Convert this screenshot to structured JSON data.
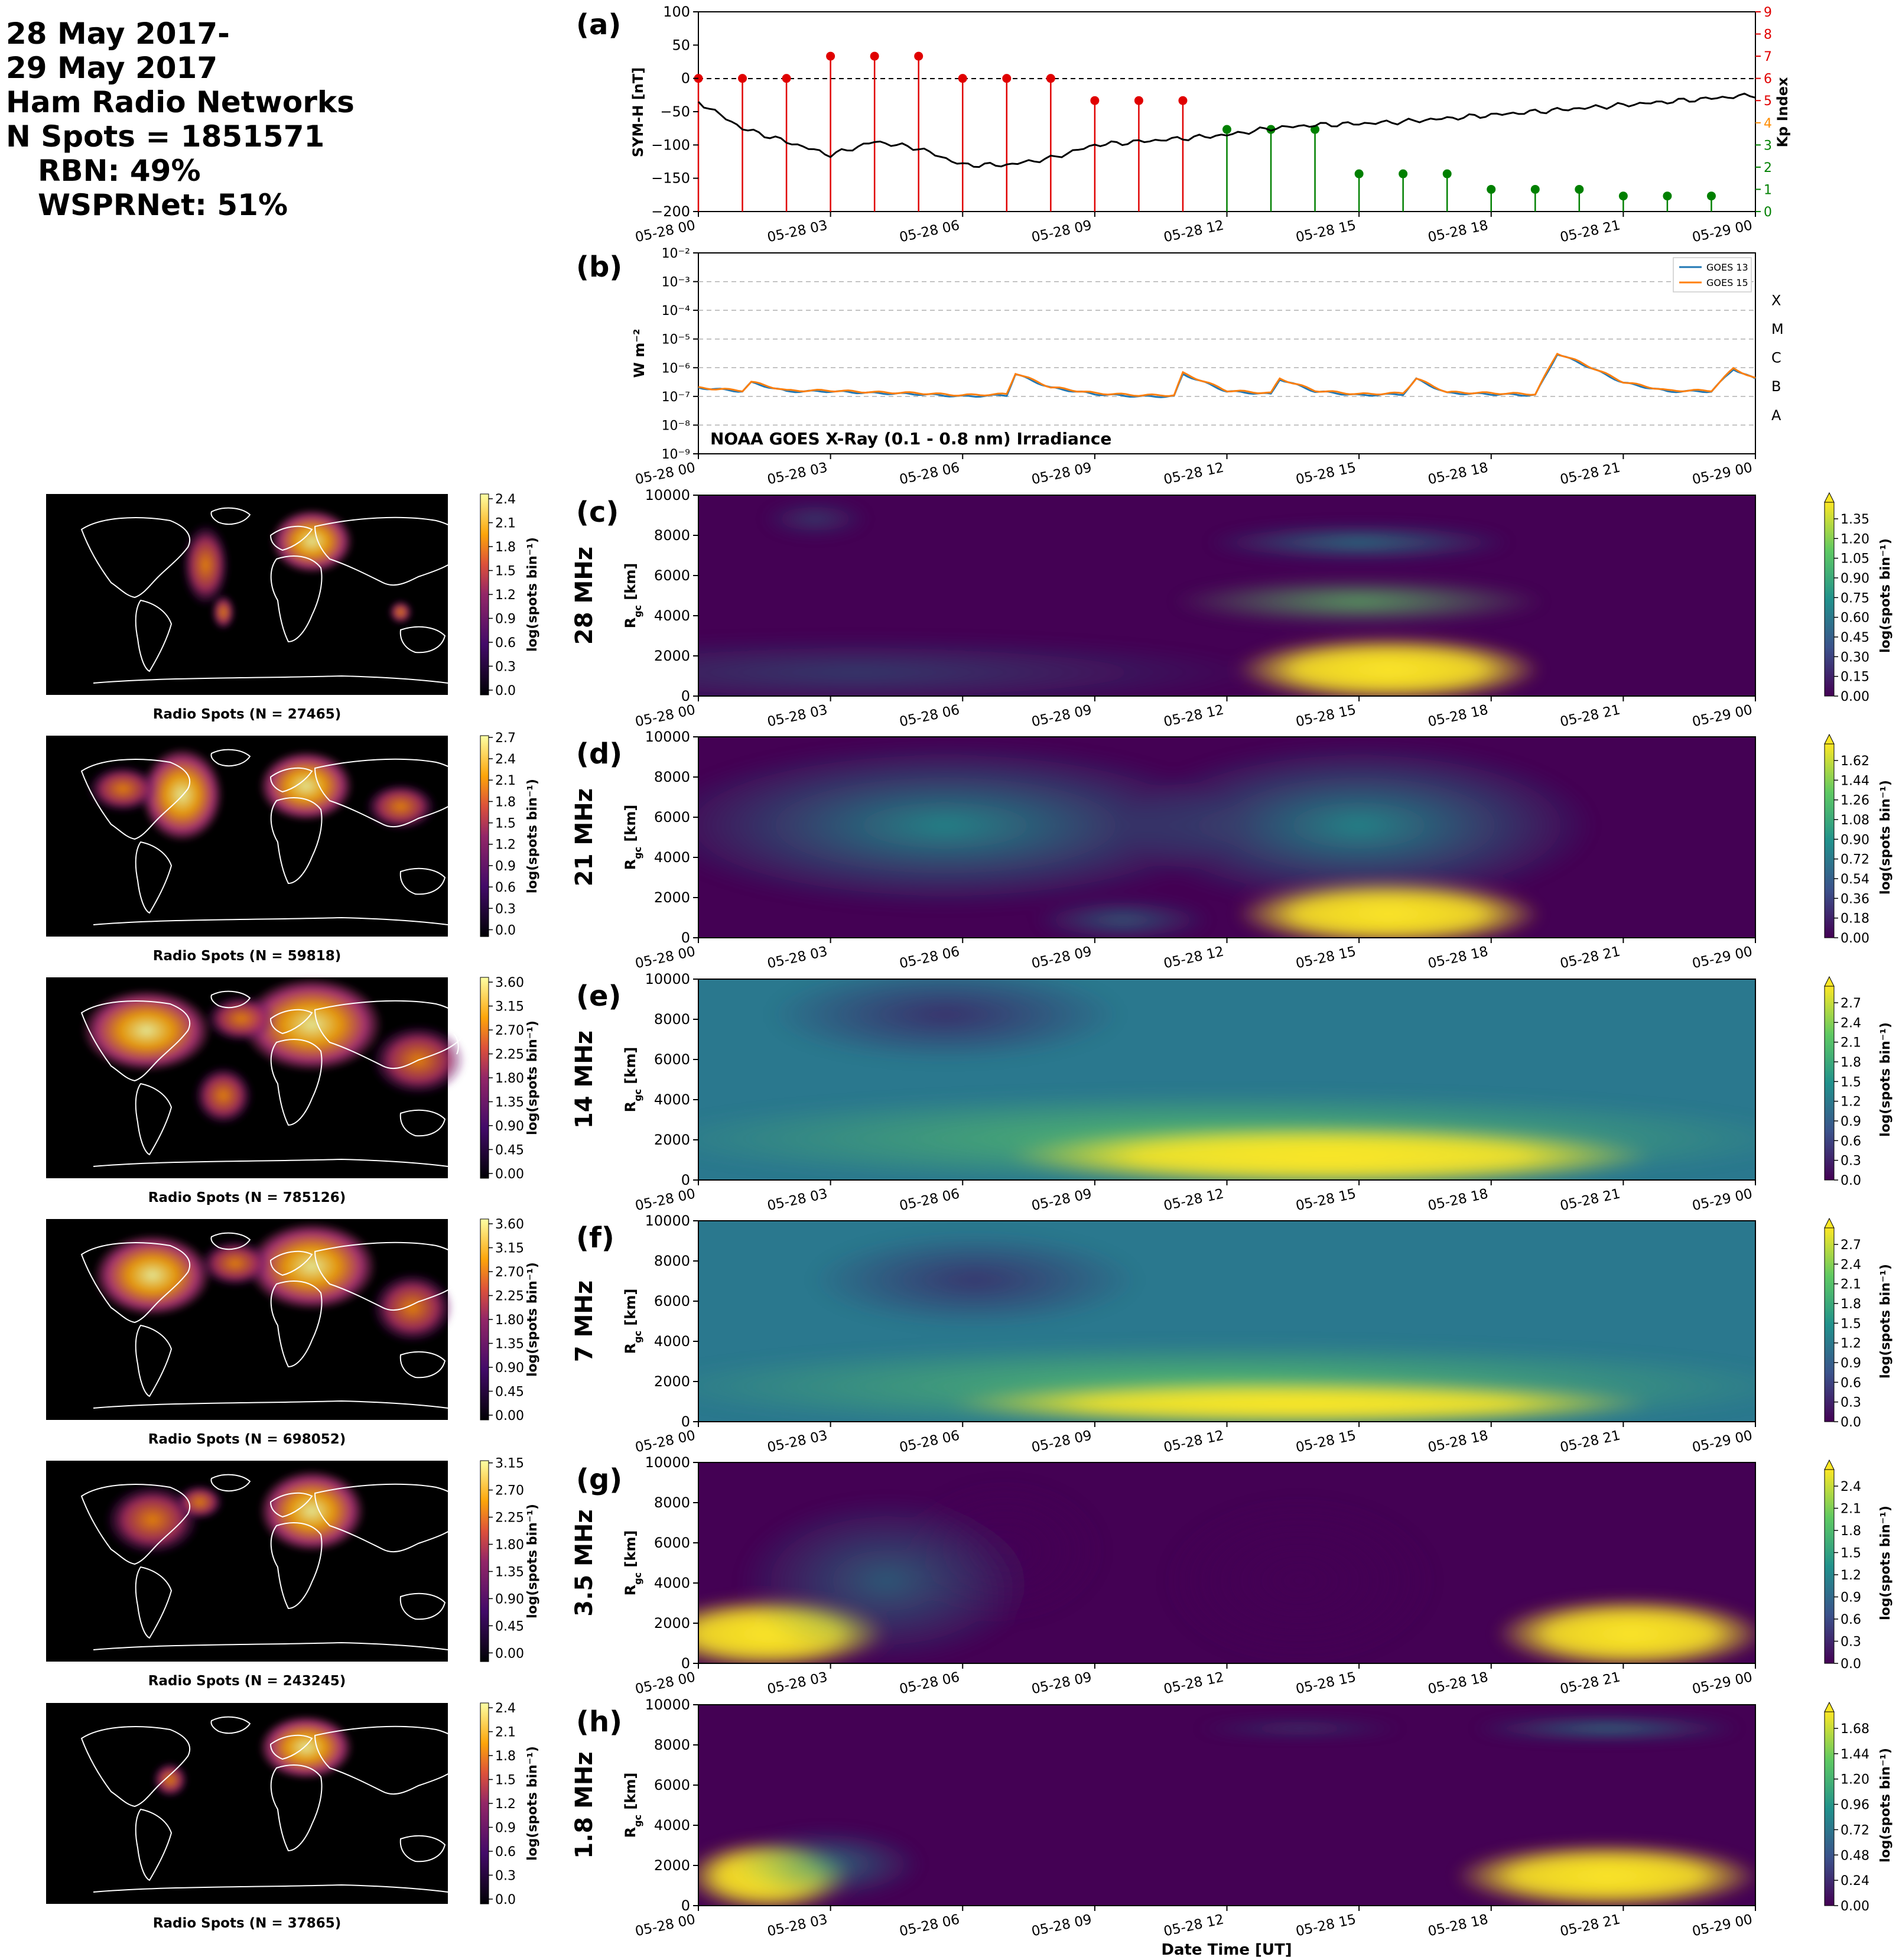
{
  "header": {
    "lines": [
      "28 May 2017-",
      "29 May 2017",
      "Ham Radio Networks",
      "N Spots = 1851571"
    ],
    "sub_lines": [
      "RBN: 49%",
      "WSPRNet: 51%"
    ]
  },
  "colors": {
    "symh_line": "#000000",
    "kp_high": "#e00000",
    "kp_low": "#008000",
    "goes13": "#1f77b4",
    "goes15": "#ff7f0e",
    "grid": "#b0b0b0"
  },
  "time_ticks": [
    "05-28 00",
    "05-28 03",
    "05-28 06",
    "05-28 09",
    "05-28 12",
    "05-28 15",
    "05-28 18",
    "05-28 21",
    "05-29 00"
  ],
  "xlabel": "Date Time [UT]",
  "panel_a": {
    "label": "(a)",
    "ylabel": "SYM-H [nT]",
    "y2label": "Kp Index",
    "yticks": [
      "100",
      "50",
      "0",
      "−50",
      "−100",
      "−150",
      "−200"
    ],
    "y2ticks": [
      "9",
      "8",
      "7",
      "6",
      "5",
      "4",
      "3",
      "2",
      "1",
      "0"
    ]
  },
  "panel_b": {
    "label": "(b)",
    "ylabel": "W m⁻²",
    "yticks": [
      "10⁻²",
      "10⁻³",
      "10⁻⁴",
      "10⁻⁵",
      "10⁻⁶",
      "10⁻⁷",
      "10⁻⁸",
      "10⁻⁹"
    ],
    "classes": [
      "X",
      "M",
      "C",
      "B",
      "A"
    ],
    "legend": [
      "GOES 13",
      "GOES 15"
    ],
    "annotation": "NOAA GOES X-Ray (0.1 - 0.8 nm) Irradiance"
  },
  "map_panels": [
    {
      "caption": "Radio Spots (N = 27465)",
      "ticks": [
        "2.4",
        "2.1",
        "1.8",
        "1.5",
        "1.2",
        "0.9",
        "0.6",
        "0.3",
        "0.0"
      ]
    },
    {
      "caption": "Radio Spots (N = 59818)",
      "ticks": [
        "2.7",
        "2.4",
        "2.1",
        "1.8",
        "1.5",
        "1.2",
        "0.9",
        "0.6",
        "0.3",
        "0.0"
      ]
    },
    {
      "caption": "Radio Spots (N = 785126)",
      "ticks": [
        "3.60",
        "3.15",
        "2.70",
        "2.25",
        "1.80",
        "1.35",
        "0.90",
        "0.45",
        "0.00"
      ]
    },
    {
      "caption": "Radio Spots (N = 698052)",
      "ticks": [
        "3.60",
        "3.15",
        "2.70",
        "2.25",
        "1.80",
        "1.35",
        "0.90",
        "0.45",
        "0.00"
      ]
    },
    {
      "caption": "Radio Spots (N = 243245)",
      "ticks": [
        "3.15",
        "2.70",
        "2.25",
        "1.80",
        "1.35",
        "0.90",
        "0.45",
        "0.00"
      ]
    },
    {
      "caption": "Radio Spots (N = 37865)",
      "ticks": [
        "2.4",
        "2.1",
        "1.8",
        "1.5",
        "1.2",
        "0.9",
        "0.6",
        "0.3",
        "0.0"
      ]
    }
  ],
  "map_cbar_label": "log(spots bin⁻¹)",
  "band_panels": [
    {
      "label": "(c)",
      "band": "28 MHz",
      "cticks": [
        "1.35",
        "1.20",
        "1.05",
        "0.90",
        "0.75",
        "0.60",
        "0.45",
        "0.30",
        "0.15",
        "0.00"
      ]
    },
    {
      "label": "(d)",
      "band": "21 MHz",
      "cticks": [
        "1.62",
        "1.44",
        "1.26",
        "1.08",
        "0.90",
        "0.72",
        "0.54",
        "0.36",
        "0.18",
        "0.00"
      ]
    },
    {
      "label": "(e)",
      "band": "14 MHz",
      "cticks": [
        "2.7",
        "2.4",
        "2.1",
        "1.8",
        "1.5",
        "1.2",
        "0.9",
        "0.6",
        "0.3",
        "0.0"
      ]
    },
    {
      "label": "(f)",
      "band": "7 MHz",
      "cticks": [
        "2.7",
        "2.4",
        "2.1",
        "1.8",
        "1.5",
        "1.2",
        "0.9",
        "0.6",
        "0.3",
        "0.0"
      ]
    },
    {
      "label": "(g)",
      "band": "3.5 MHz",
      "cticks": [
        "2.4",
        "2.1",
        "1.8",
        "1.5",
        "1.2",
        "0.9",
        "0.6",
        "0.3",
        "0.0"
      ]
    },
    {
      "label": "(h)",
      "band": "1.8 MHz",
      "cticks": [
        "1.68",
        "1.44",
        "1.20",
        "0.96",
        "0.72",
        "0.48",
        "0.24",
        "0.00"
      ]
    }
  ],
  "band_ylabel": "R",
  "band_ylabel_sub": "gc",
  "band_ylabel_unit": " [km]",
  "band_yticks": [
    "10000",
    "8000",
    "6000",
    "4000",
    "2000",
    "0"
  ],
  "band_cbar_label": "log(spots bin⁻¹)",
  "chart_data": [
    {
      "type": "line",
      "title": "",
      "xlabel": "",
      "ylabel": "SYM-H [nT]",
      "ylim": [
        -200,
        100
      ],
      "x_hours": [
        0,
        1,
        2,
        3,
        4,
        5,
        6,
        7,
        8,
        9,
        10,
        11,
        12,
        13,
        14,
        15,
        16,
        17,
        18,
        19,
        20,
        21,
        22,
        23,
        24
      ],
      "series": [
        {
          "values": [
            -35,
            -75,
            -95,
            -115,
            -95,
            -105,
            -130,
            -130,
            -120,
            -100,
            -95,
            -90,
            -85,
            -75,
            -70,
            -68,
            -65,
            -60,
            -55,
            -50,
            -45,
            -40,
            -35,
            -30,
            -25
          ]
        }
      ]
    },
    {
      "type": "bar",
      "ylabel": "Kp Index",
      "ylim": [
        0,
        9
      ],
      "x_hours": [
        0,
        1,
        2,
        3,
        4,
        5,
        6,
        7,
        8,
        9,
        10,
        11,
        12,
        13,
        14,
        15,
        16,
        17,
        18,
        19,
        20,
        21,
        22,
        23
      ],
      "values": [
        6,
        6,
        6,
        7,
        7,
        7,
        6,
        6,
        6,
        5,
        5,
        5,
        3.7,
        3.7,
        3.7,
        1.7,
        1.7,
        1.7,
        1,
        1,
        1,
        0.7,
        0.7,
        0.7
      ]
    },
    {
      "type": "line",
      "ylabel": "W m⁻²",
      "yscale": "log",
      "ylim": [
        1e-09,
        0.01
      ],
      "x_hours": [
        0,
        1,
        1.2,
        2,
        3,
        4,
        5,
        6,
        7,
        7.2,
        8,
        9,
        10,
        10.8,
        11,
        12,
        13,
        13.2,
        14,
        15,
        16,
        16.3,
        17,
        18,
        19,
        19.5,
        20,
        21,
        22,
        23,
        23.5,
        24
      ],
      "series": [
        {
          "name": "GOES 13",
          "values": [
            2e-07,
            1.5e-07,
            3e-07,
            1.5e-07,
            1.5e-07,
            1.3e-07,
            1.2e-07,
            1e-07,
            1.1e-07,
            6e-07,
            2e-07,
            1.2e-07,
            1e-07,
            1e-07,
            6e-07,
            1.5e-07,
            1.2e-07,
            4e-07,
            1.5e-07,
            1.1e-07,
            1.2e-07,
            4e-07,
            1.3e-07,
            1.2e-07,
            1.1e-07,
            3e-06,
            1.5e-06,
            3e-07,
            1.5e-07,
            1.5e-07,
            9e-07,
            4e-07
          ]
        },
        {
          "name": "GOES 15",
          "values": [
            2e-07,
            1.6e-07,
            3.2e-07,
            1.6e-07,
            1.6e-07,
            1.4e-07,
            1.3e-07,
            1.1e-07,
            1.2e-07,
            6.5e-07,
            2.1e-07,
            1.3e-07,
            1.1e-07,
            1.1e-07,
            6.5e-07,
            1.6e-07,
            1.3e-07,
            4.2e-07,
            1.6e-07,
            1.2e-07,
            1.3e-07,
            4.2e-07,
            1.4e-07,
            1.3e-07,
            1.2e-07,
            3.2e-06,
            1.6e-06,
            3.2e-07,
            1.6e-07,
            1.6e-07,
            9.5e-07,
            4.2e-07
          ]
        }
      ]
    },
    {
      "type": "heatmap",
      "title": "28 MHz",
      "ylabel": "Rgc [km]",
      "ylim": [
        0,
        10000
      ],
      "zlim": [
        0,
        1.35
      ]
    },
    {
      "type": "heatmap",
      "title": "21 MHz",
      "ylabel": "Rgc [km]",
      "ylim": [
        0,
        10000
      ],
      "zlim": [
        0,
        1.62
      ]
    },
    {
      "type": "heatmap",
      "title": "14 MHz",
      "ylabel": "Rgc [km]",
      "ylim": [
        0,
        10000
      ],
      "zlim": [
        0,
        2.7
      ]
    },
    {
      "type": "heatmap",
      "title": "7 MHz",
      "ylabel": "Rgc [km]",
      "ylim": [
        0,
        10000
      ],
      "zlim": [
        0,
        2.7
      ]
    },
    {
      "type": "heatmap",
      "title": "3.5 MHz",
      "ylabel": "Rgc [km]",
      "ylim": [
        0,
        10000
      ],
      "zlim": [
        0,
        2.4
      ]
    },
    {
      "type": "heatmap",
      "title": "1.8 MHz",
      "ylabel": "Rgc [km]",
      "ylim": [
        0,
        10000
      ],
      "zlim": [
        0,
        1.68
      ]
    }
  ]
}
